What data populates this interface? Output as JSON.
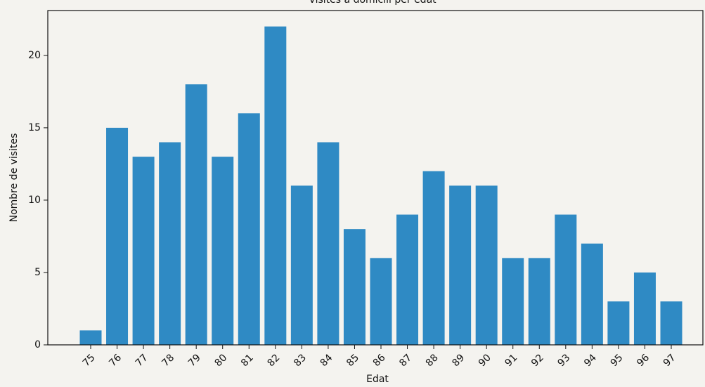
{
  "chart_data": {
    "type": "bar",
    "title": "Visites a domicili per edat",
    "xlabel": "Edat",
    "ylabel": "Nombre de visites",
    "categories": [
      "75",
      "76",
      "77",
      "78",
      "79",
      "80",
      "81",
      "82",
      "83",
      "84",
      "85",
      "86",
      "87",
      "88",
      "89",
      "90",
      "91",
      "92",
      "93",
      "94",
      "95",
      "96",
      "97"
    ],
    "values": [
      1,
      15,
      13,
      14,
      18,
      13,
      16,
      22,
      11,
      14,
      8,
      6,
      9,
      12,
      11,
      11,
      6,
      6,
      9,
      7,
      3,
      5,
      3
    ],
    "color": "#2f8ac4",
    "ylim": [
      0,
      23.1
    ],
    "yticks": [
      0,
      5,
      10,
      15,
      20
    ]
  }
}
